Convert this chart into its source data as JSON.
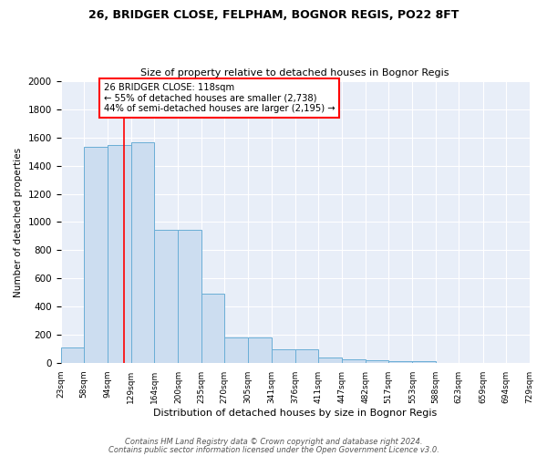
{
  "title": "26, BRIDGER CLOSE, FELPHAM, BOGNOR REGIS, PO22 8FT",
  "subtitle": "Size of property relative to detached houses in Bognor Regis",
  "xlabel": "Distribution of detached houses by size in Bognor Regis",
  "ylabel": "Number of detached properties",
  "bar_edges": [
    23,
    58,
    94,
    129,
    164,
    200,
    235,
    270,
    305,
    341,
    376,
    411,
    447,
    482,
    517,
    553,
    588,
    623,
    659,
    694,
    729
  ],
  "bar_heights": [
    110,
    1535,
    1550,
    1565,
    945,
    945,
    490,
    183,
    183,
    97,
    97,
    38,
    25,
    22,
    15,
    12,
    0,
    0,
    0,
    0
  ],
  "tick_labels": [
    "23sqm",
    "58sqm",
    "94sqm",
    "129sqm",
    "164sqm",
    "200sqm",
    "235sqm",
    "270sqm",
    "305sqm",
    "341sqm",
    "376sqm",
    "411sqm",
    "447sqm",
    "482sqm",
    "517sqm",
    "553sqm",
    "588sqm",
    "623sqm",
    "659sqm",
    "694sqm",
    "729sqm"
  ],
  "bar_color": "#ccddf0",
  "bar_edge_color": "#6aaed6",
  "vline_x": 118,
  "vline_color": "red",
  "annotation_text": "26 BRIDGER CLOSE: 118sqm\n← 55% of detached houses are smaller (2,738)\n44% of semi-detached houses are larger (2,195) →",
  "annotation_box_color": "white",
  "annotation_box_edge": "red",
  "ylim": [
    0,
    2000
  ],
  "yticks": [
    0,
    200,
    400,
    600,
    800,
    1000,
    1200,
    1400,
    1600,
    1800,
    2000
  ],
  "background_color": "#e8eef8",
  "grid_color": "#ffffff",
  "footer1": "Contains HM Land Registry data © Crown copyright and database right 2024.",
  "footer2": "Contains public sector information licensed under the Open Government Licence v3.0."
}
